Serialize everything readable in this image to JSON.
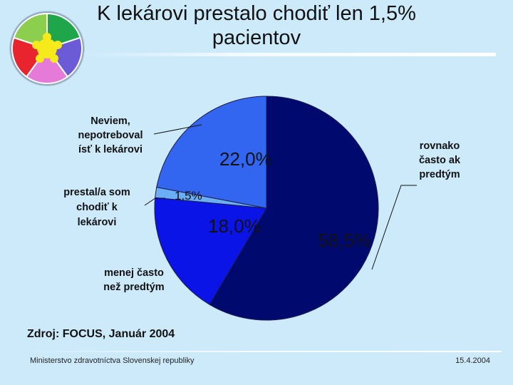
{
  "slide": {
    "title": "K lekárovi prestalo chodiť len 1,5% pacientov",
    "source": "Zdroj: FOCUS, Január 2004",
    "footer_left": "Ministerstvo zdravotníctva Slovenskej republiky",
    "footer_right": "15.4.2004"
  },
  "logo": {
    "icon": "puzzle-flower-icon",
    "colors": [
      "#1fa64a",
      "#6b5bd6",
      "#e67ad8",
      "#e8242f",
      "#8ccf4f",
      "#f7ea1a"
    ]
  },
  "chart_data": {
    "type": "pie",
    "title": "K lekárovi prestalo chodiť len 1,5% pacientov",
    "slices": [
      {
        "label_lines": [
          "rovnako",
          "často ak",
          "predtým"
        ],
        "value": 58.5,
        "value_label": "58,5%",
        "color": "#000a6e"
      },
      {
        "label_lines": [
          "menej často",
          "než predtým"
        ],
        "value": 18.0,
        "value_label": "18,0%",
        "color": "#0a14e6"
      },
      {
        "label_lines": [
          "prestal/a som",
          "chodiť k",
          "lekárovi"
        ],
        "value": 1.5,
        "value_label": "1,5%",
        "color": "#6aaef5"
      },
      {
        "label_lines": [
          "Neviem,",
          "nepotreboval",
          "ísť k lekárovi"
        ],
        "value": 22.0,
        "value_label": "22,0%",
        "color": "#3366f0"
      }
    ]
  }
}
